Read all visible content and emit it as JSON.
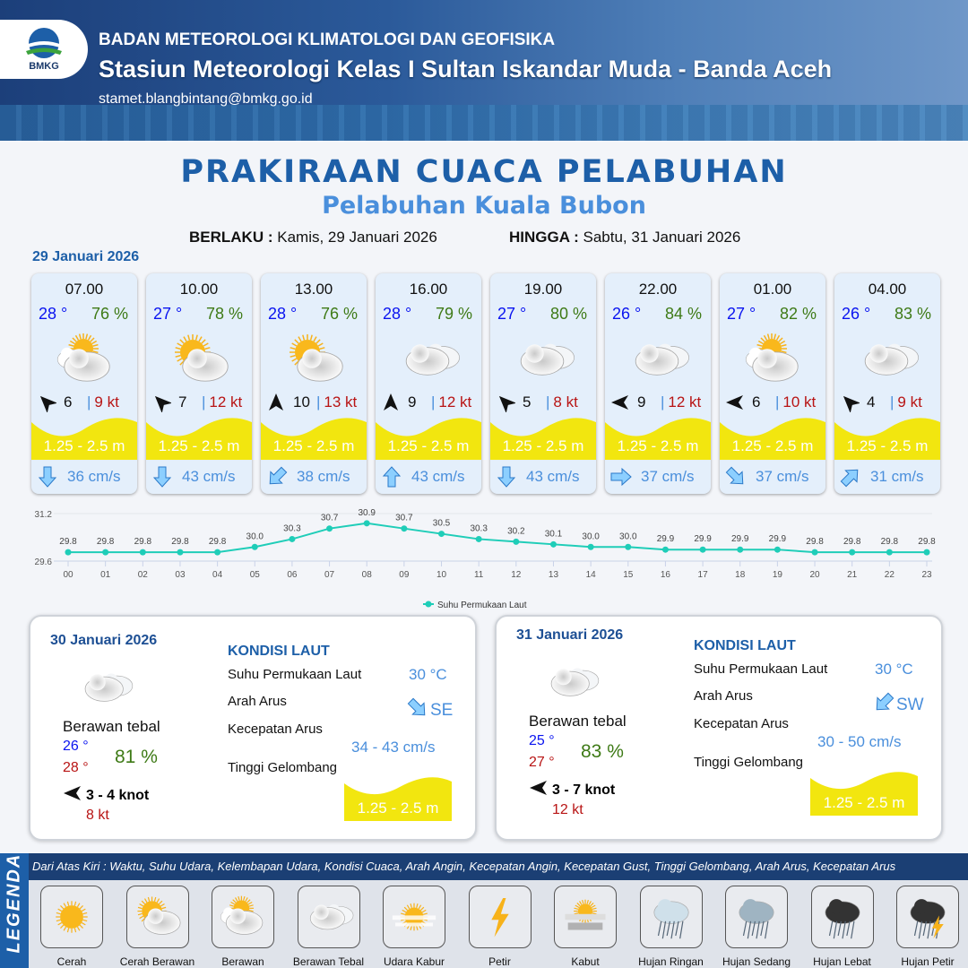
{
  "header": {
    "logo_text": "BMKG",
    "agency": "BADAN METEOROLOGI KLIMATOLOGI DAN GEOFISIKA",
    "station": "Stasiun Meteorologi Kelas I Sultan Iskandar Muda - Banda Aceh",
    "email": "stamet.blangbintang@bmkg.go.id"
  },
  "title": "PRAKIRAAN CUACA PELABUHAN",
  "subtitle": "Pelabuhan Kuala Bubon",
  "validity": {
    "from_label": "BERLAKU :",
    "from": "Kamis, 29 Januari 2026",
    "to_label": "HINGGA :",
    "to": "Sabtu, 31 Januari 2026"
  },
  "day1_date": "29 Januari 2026",
  "forecasts": [
    {
      "time": "07.00",
      "temp": "28 °",
      "humidity": "76 %",
      "weather": "berawan",
      "wind_dir": "NW",
      "wind_speed": "6",
      "gust": "9 kt",
      "wave": "1.25 - 2.5 m",
      "current_dir": "S",
      "current_speed": "36 cm/s"
    },
    {
      "time": "10.00",
      "temp": "27 °",
      "humidity": "78 %",
      "weather": "cerah-berawan",
      "wind_dir": "NW",
      "wind_speed": "7",
      "gust": "12 kt",
      "wave": "1.25 - 2.5 m",
      "current_dir": "S",
      "current_speed": "43 cm/s"
    },
    {
      "time": "13.00",
      "temp": "28 °",
      "humidity": "76 %",
      "weather": "cerah-berawan",
      "wind_dir": "N",
      "wind_speed": "10",
      "gust": "13 kt",
      "wave": "1.25 - 2.5 m",
      "current_dir": "SW",
      "current_speed": "38 cm/s"
    },
    {
      "time": "16.00",
      "temp": "28 °",
      "humidity": "79 %",
      "weather": "berawan-tebal",
      "wind_dir": "N",
      "wind_speed": "9",
      "gust": "12 kt",
      "wave": "1.25 - 2.5 m",
      "current_dir": "N",
      "current_speed": "43 cm/s"
    },
    {
      "time": "19.00",
      "temp": "27 °",
      "humidity": "80 %",
      "weather": "berawan-tebal",
      "wind_dir": "NW",
      "wind_speed": "5",
      "gust": "8 kt",
      "wave": "1.25 - 2.5 m",
      "current_dir": "S",
      "current_speed": "43 cm/s"
    },
    {
      "time": "22.00",
      "temp": "26 °",
      "humidity": "84 %",
      "weather": "berawan-tebal",
      "wind_dir": "W",
      "wind_speed": "9",
      "gust": "12 kt",
      "wave": "1.25 - 2.5 m",
      "current_dir": "E",
      "current_speed": "37 cm/s"
    },
    {
      "time": "01.00",
      "temp": "27 °",
      "humidity": "82 %",
      "weather": "berawan",
      "wind_dir": "W",
      "wind_speed": "6",
      "gust": "10 kt",
      "wave": "1.25 - 2.5 m",
      "current_dir": "SE",
      "current_speed": "37 cm/s"
    },
    {
      "time": "04.00",
      "temp": "26 °",
      "humidity": "83 %",
      "weather": "berawan-tebal",
      "wind_dir": "NW",
      "wind_speed": "4",
      "gust": "9 kt",
      "wave": "1.25 - 2.5 m",
      "current_dir": "NE",
      "current_speed": "31 cm/s"
    }
  ],
  "chart_data": {
    "type": "line",
    "x": [
      "00",
      "01",
      "02",
      "03",
      "04",
      "05",
      "06",
      "07",
      "08",
      "09",
      "10",
      "11",
      "12",
      "13",
      "14",
      "15",
      "16",
      "17",
      "18",
      "19",
      "20",
      "21",
      "22",
      "23"
    ],
    "series": [
      {
        "name": "Suhu Permukaan Laut",
        "values": [
          29.8,
          29.8,
          29.8,
          29.8,
          29.8,
          30.0,
          30.3,
          30.7,
          30.9,
          30.7,
          30.5,
          30.3,
          30.2,
          30.1,
          30.0,
          30.0,
          29.9,
          29.9,
          29.9,
          29.9,
          29.8,
          29.8,
          29.8,
          29.8
        ],
        "color": "#1fcdb8"
      }
    ],
    "yticks": [
      "29.6",
      "31.2"
    ],
    "ylim": [
      29.6,
      31.2
    ],
    "grid": true,
    "legend": "bottom"
  },
  "days": [
    {
      "date": "30 Januari 2026",
      "weather": "Berawan tebal",
      "icon": "berawan-tebal",
      "tmin": "26 °",
      "tmax": "28 °",
      "humidity": "81 %",
      "wind_dir": "W",
      "wind": "3  - 4 knot",
      "gust": "8 kt",
      "sea_title": "KONDISI LAUT",
      "sst_label": "Suhu Permukaan Laut",
      "sst": "30 °C",
      "dir_label": "Arah Arus",
      "current_dir": "SE",
      "speed_label": "Kecepatan Arus",
      "current_speed": "34  - 43 cm/s",
      "wave_label": "Tinggi Gelombang",
      "wave": "1.25 - 2.5 m"
    },
    {
      "date": "31 Januari 2026",
      "weather": "Berawan tebal",
      "icon": "berawan-tebal",
      "tmin": "25 °",
      "tmax": "27 °",
      "humidity": "83 %",
      "wind_dir": "W",
      "wind": "3  - 7 knot",
      "gust": "12 kt",
      "sea_title": "KONDISI LAUT",
      "sst_label": "Suhu Permukaan Laut",
      "sst": "30 °C",
      "dir_label": "Arah Arus",
      "current_dir": "SW",
      "speed_label": "Kecepatan Arus",
      "current_speed": "30 - 50 cm/s",
      "wave_label": "Tinggi Gelombang",
      "wave": "1.25 - 2.5 m"
    }
  ],
  "legend": {
    "title": "LEGENDA",
    "description": "Dari Atas Kiri : Waktu, Suhu Udara, Kelembapan Udara, Kondisi Cuaca, Arah Angin, Kecepatan Angin, Kecepatan Gust, Tinggi Gelombang, Arah Arus, Kecepatan Arus",
    "items": [
      {
        "icon": "cerah",
        "label": "Cerah"
      },
      {
        "icon": "cerah-berawan",
        "label": "Cerah Berawan"
      },
      {
        "icon": "berawan",
        "label": "Berawan"
      },
      {
        "icon": "berawan-tebal",
        "label": "Berawan Tebal"
      },
      {
        "icon": "udara-kabur",
        "label": "Udara Kabur"
      },
      {
        "icon": "petir",
        "label": "Petir"
      },
      {
        "icon": "kabut",
        "label": "Kabut"
      },
      {
        "icon": "hujan-ringan",
        "label": "Hujan Ringan"
      },
      {
        "icon": "hujan-sedang",
        "label": "Hujan Sedang"
      },
      {
        "icon": "hujan-lebat",
        "label": "Hujan Lebat"
      },
      {
        "icon": "hujan-petir",
        "label": "Hujan Petir"
      }
    ]
  },
  "colors": {
    "accent": "#1d5fa8",
    "wave": "#f2e60f",
    "temp": "#0a14f0",
    "humidity": "#3e7a16",
    "gust": "#b81414",
    "current": "#4a8fdc"
  }
}
